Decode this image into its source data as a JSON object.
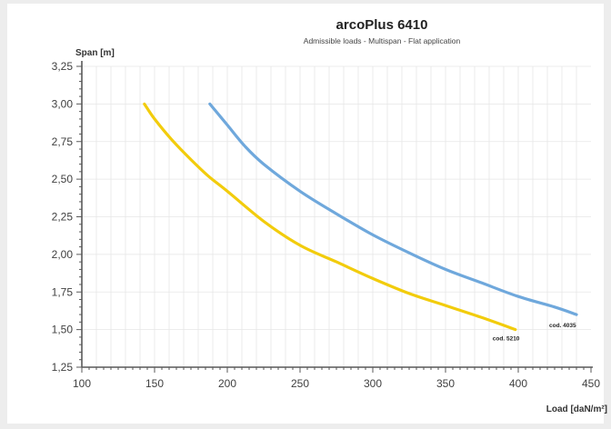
{
  "chart_data": {
    "type": "line",
    "title": "arcoPlus 6410",
    "subtitle": "Admissible loads - Multispan - Flat application",
    "xlabel": "Load [daN/m²]",
    "ylabel": "Span [m]",
    "xlim": [
      100,
      450
    ],
    "ylim": [
      1.25,
      3.25
    ],
    "x_ticks": [
      100,
      150,
      200,
      250,
      300,
      350,
      400,
      450
    ],
    "y_ticks": [
      1.25,
      1.5,
      1.75,
      2.0,
      2.25,
      2.5,
      2.75,
      3.0,
      3.25
    ],
    "x_tick_labels": [
      "100",
      "150",
      "200",
      "250",
      "300",
      "350",
      "400",
      "450"
    ],
    "y_tick_labels": [
      "1,25",
      "1,50",
      "1,75",
      "2,00",
      "2,25",
      "2,50",
      "2,75",
      "3,00",
      "3,25"
    ],
    "grid": true,
    "series": [
      {
        "name": "cod. 4035",
        "color": "#6fa8dc",
        "points": [
          [
            188,
            3.0
          ],
          [
            200,
            2.86
          ],
          [
            212,
            2.72
          ],
          [
            225,
            2.6
          ],
          [
            250,
            2.42
          ],
          [
            275,
            2.27
          ],
          [
            300,
            2.13
          ],
          [
            325,
            2.01
          ],
          [
            350,
            1.9
          ],
          [
            375,
            1.81
          ],
          [
            400,
            1.72
          ],
          [
            425,
            1.65
          ],
          [
            440,
            1.6
          ]
        ]
      },
      {
        "name": "cod. 5210",
        "color": "#f2cc0c",
        "points": [
          [
            143,
            3.0
          ],
          [
            150,
            2.9
          ],
          [
            162,
            2.76
          ],
          [
            175,
            2.63
          ],
          [
            187,
            2.52
          ],
          [
            200,
            2.42
          ],
          [
            225,
            2.22
          ],
          [
            250,
            2.06
          ],
          [
            275,
            1.95
          ],
          [
            300,
            1.84
          ],
          [
            325,
            1.74
          ],
          [
            350,
            1.66
          ],
          [
            375,
            1.58
          ],
          [
            398,
            1.5
          ]
        ]
      }
    ]
  },
  "colors": {
    "axis": "#595959",
    "grid": "#e6e6e6",
    "text": "#404040"
  }
}
